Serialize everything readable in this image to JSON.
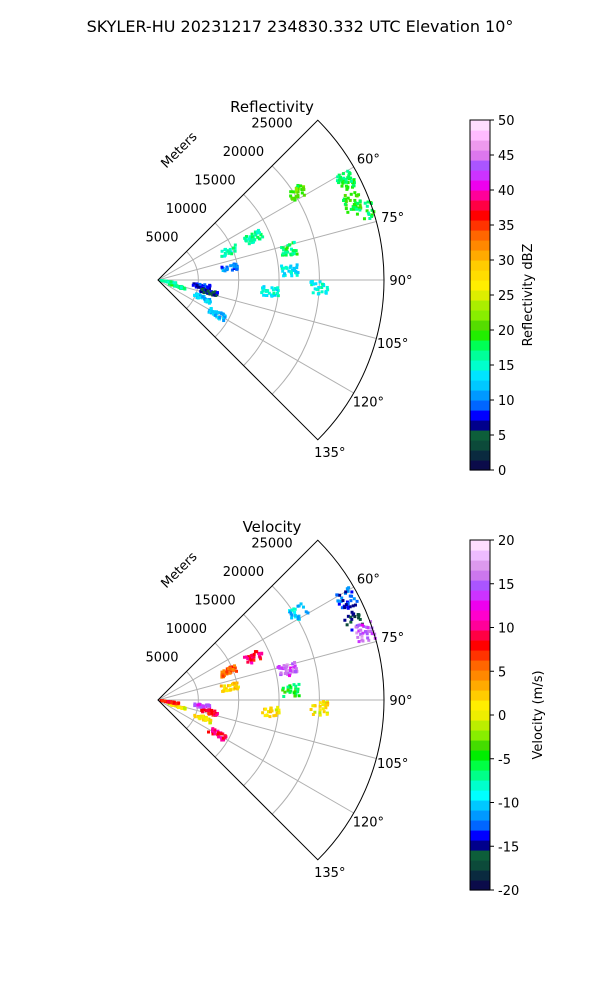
{
  "suptitle": "SKYLER-HU  20231217  234830.332 UTC Elevation 10°",
  "chart_data": [
    {
      "type": "polar-sector",
      "title": "Reflectivity",
      "r_label": "Meters",
      "r_ticks": [
        "5000",
        "10000",
        "15000",
        "20000",
        "25000"
      ],
      "theta_ticks": [
        "60°",
        "75°",
        "90°",
        "105°",
        "120°",
        "135°"
      ],
      "theta_range_deg": [
        45,
        135
      ],
      "r_max": 28000,
      "colorbar": {
        "label": "Reflectivity dBZ",
        "range": [
          0,
          50
        ],
        "ticks": [
          "0",
          "5",
          "10",
          "15",
          "20",
          "25",
          "30",
          "35",
          "40",
          "45",
          "50"
        ]
      },
      "echo_clusters": [
        {
          "az": 58,
          "r": 20500,
          "value": 20
        },
        {
          "az": 62,
          "r": 26500,
          "value": 18
        },
        {
          "az": 68,
          "r": 26000,
          "value": 19
        },
        {
          "az": 72,
          "r": 27000,
          "value": 18
        },
        {
          "az": 66,
          "r": 13000,
          "value": 16
        },
        {
          "az": 68,
          "r": 9500,
          "value": 16
        },
        {
          "az": 77,
          "r": 16500,
          "value": 17
        },
        {
          "az": 80,
          "r": 9000,
          "value": 10
        },
        {
          "az": 86,
          "r": 16500,
          "value": 14
        },
        {
          "az": 93,
          "r": 20000,
          "value": 15
        },
        {
          "az": 96,
          "r": 14000,
          "value": 14
        },
        {
          "az": 98,
          "r": 5500,
          "value": 8
        },
        {
          "az": 103,
          "r": 6500,
          "value": 6
        },
        {
          "az": 112,
          "r": 6000,
          "value": 13
        },
        {
          "az": 120,
          "r": 8500,
          "value": 12
        },
        {
          "az": 108,
          "r": 2500,
          "value": 17
        },
        {
          "az": 100,
          "r": 1500,
          "value": 16
        }
      ]
    },
    {
      "type": "polar-sector",
      "title": "Velocity",
      "r_label": "Meters",
      "r_ticks": [
        "5000",
        "10000",
        "15000",
        "20000",
        "25000"
      ],
      "theta_ticks": [
        "60°",
        "75°",
        "90°",
        "105°",
        "120°",
        "135°"
      ],
      "theta_range_deg": [
        45,
        135
      ],
      "r_max": 28000,
      "colorbar": {
        "label": "Velocity (m/s)",
        "range": [
          -20,
          20
        ],
        "ticks": [
          "-20",
          "-15",
          "-10",
          "-5",
          "0",
          "5",
          "10",
          "15",
          "20"
        ]
      },
      "echo_clusters": [
        {
          "az": 58,
          "r": 20500,
          "value": -10
        },
        {
          "az": 62,
          "r": 26500,
          "value": -13
        },
        {
          "az": 68,
          "r": 26000,
          "value": -16
        },
        {
          "az": 72,
          "r": 27000,
          "value": 15
        },
        {
          "az": 66,
          "r": 13000,
          "value": 9
        },
        {
          "az": 68,
          "r": 9500,
          "value": 6
        },
        {
          "az": 77,
          "r": 16500,
          "value": 15
        },
        {
          "az": 80,
          "r": 9000,
          "value": 2
        },
        {
          "az": 86,
          "r": 16500,
          "value": -5
        },
        {
          "az": 93,
          "r": 20000,
          "value": 1
        },
        {
          "az": 96,
          "r": 14000,
          "value": 1
        },
        {
          "az": 98,
          "r": 5500,
          "value": 14
        },
        {
          "az": 103,
          "r": 6500,
          "value": 9
        },
        {
          "az": 112,
          "r": 6000,
          "value": 1
        },
        {
          "az": 120,
          "r": 8500,
          "value": 9
        },
        {
          "az": 108,
          "r": 2500,
          "value": 1
        },
        {
          "az": 100,
          "r": 1500,
          "value": 8
        }
      ]
    }
  ]
}
